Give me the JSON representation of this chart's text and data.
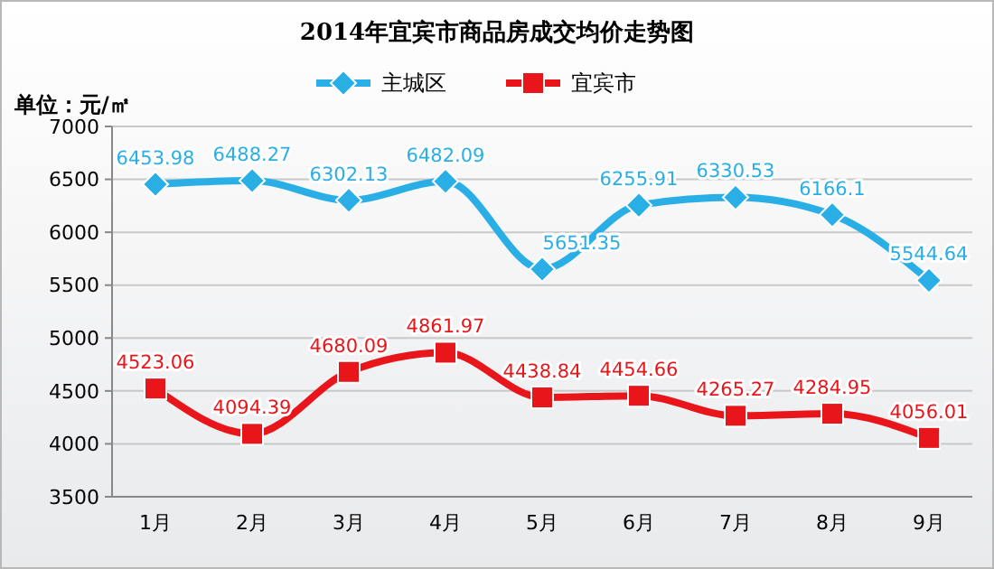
{
  "chart_data": {
    "type": "line",
    "title": "2014年宜宾市商品房成交均价走势图",
    "ylabel": "单位：元/㎡",
    "categories": [
      "1月",
      "2月",
      "3月",
      "4月",
      "5月",
      "6月",
      "7月",
      "8月",
      "9月"
    ],
    "series": [
      {
        "name": "主城区",
        "color": "#29aee6",
        "marker": "diamond",
        "values": [
          6453.98,
          6488.27,
          6302.13,
          6482.09,
          5651.35,
          6255.91,
          6330.53,
          6166.1,
          5544.64
        ]
      },
      {
        "name": "宜宾市",
        "color": "#e8151b",
        "marker": "square",
        "values": [
          4523.06,
          4094.39,
          4680.09,
          4861.97,
          4438.84,
          4454.66,
          4265.27,
          4284.95,
          4056.01
        ]
      }
    ],
    "ylim": [
      3500,
      7000
    ],
    "yticks": [
      3500,
      4000,
      4500,
      5000,
      5500,
      6000,
      6500,
      7000
    ],
    "grid": "y",
    "legend": "top",
    "data_labels": true
  }
}
